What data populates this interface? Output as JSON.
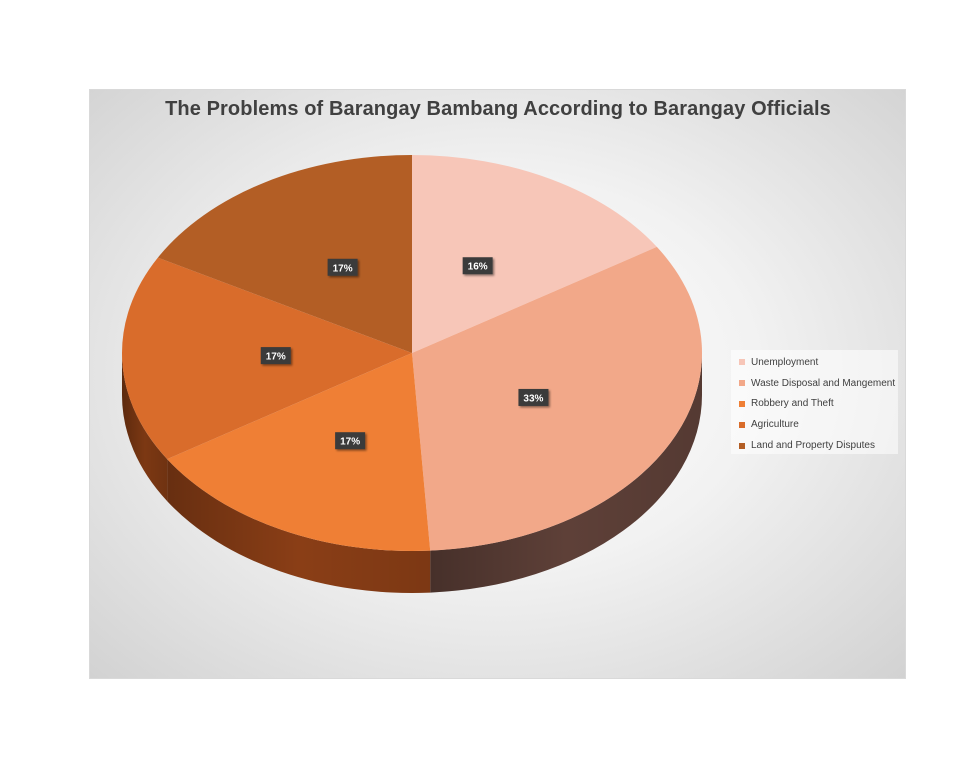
{
  "chart_data": {
    "type": "pie",
    "title": "The Problems of Barangay Bambang According to Barangay Officials",
    "categories": [
      "Unemployment",
      "Waste Disposal and Mangement",
      "Robbery and Theft",
      "Agriculture",
      "Land and Property Disputes"
    ],
    "values": [
      16,
      33,
      17,
      17,
      17
    ],
    "labels": [
      "16%",
      "33%",
      "17%",
      "17%",
      "17%"
    ],
    "colors": [
      "#f7c6b8",
      "#f2a889",
      "#ef7f35",
      "#d96c2b",
      "#b35e25"
    ],
    "side_colors": [
      "#b99286",
      "#5e4038",
      "#8a3e16",
      "#7c3813",
      "#6a3412"
    ],
    "legend": "right",
    "style": "3d"
  }
}
